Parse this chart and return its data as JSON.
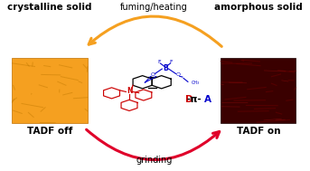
{
  "bg_color": "#ffffff",
  "left_label_top": "crystalline solid",
  "left_label_bottom": "TADF off",
  "right_label_top": "amorphous solid",
  "right_label_bottom": "TADF on",
  "orange_square_color": "#f5a020",
  "dark_red_square_color": "#3a0000",
  "top_arrow_label": "fuming/heating",
  "bottom_arrow_label": "grinding",
  "top_arrow_color": "#f5a020",
  "bottom_arrow_color": "#e0002a",
  "d_color": "#cc0000",
  "pi_color": "#000000",
  "a_color": "#0000cc",
  "molecule_donor_color": "#cc0000",
  "molecule_acceptor_color": "#0000cc",
  "molecule_bridge_color": "#000000",
  "fig_width": 3.43,
  "fig_height": 1.89,
  "dpi": 100
}
